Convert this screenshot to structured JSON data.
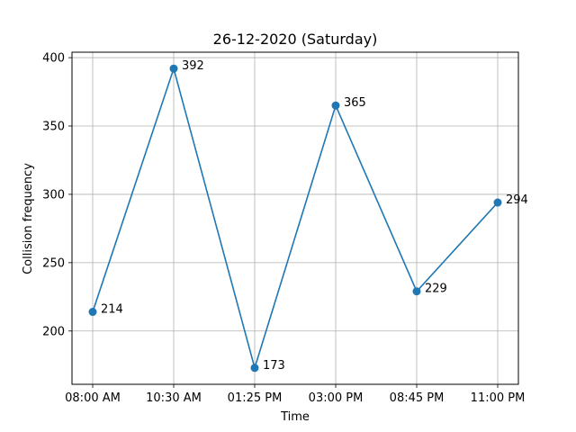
{
  "chart_data": {
    "type": "line",
    "title": "26-12-2020 (Saturday)",
    "xlabel": "Time",
    "ylabel": "Collision frequency",
    "categories": [
      "08:00 AM",
      "10:30 AM",
      "01:25 PM",
      "03:00 PM",
      "08:45 PM",
      "11:00 PM"
    ],
    "series": [
      {
        "values": [
          214,
          392,
          173,
          365,
          229,
          294
        ],
        "color": "#1f77b4"
      }
    ],
    "y_ticks": [
      200,
      250,
      300,
      350,
      400
    ],
    "ylim": [
      161,
      404
    ],
    "grid": true,
    "data_labels": [
      "214",
      "392",
      "173",
      "365",
      "229",
      "294"
    ]
  }
}
